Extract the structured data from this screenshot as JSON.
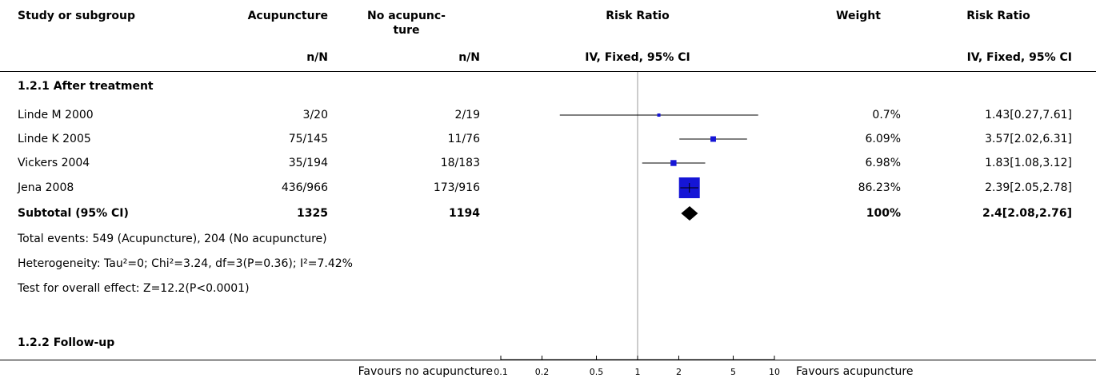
{
  "header": {
    "study_col": "Study or subgroup",
    "acu_col": "Acupuncture",
    "noacu_col_line1": "No acupunc-",
    "noacu_col_line2": "ture",
    "rr_col": "Risk Ratio",
    "weight_col": "Weight",
    "rr2_col": "Risk Ratio",
    "acu_sub": "n/N",
    "noacu_sub": "n/N",
    "rr_sub": "IV, Fixed, 95% CI",
    "rr2_sub": "IV, Fixed, 95% CI"
  },
  "groups": [
    {
      "title": "1.2.1 After treatment",
      "studies": [
        {
          "name": "Linde M 2000",
          "acu": "3/20",
          "noacu": "2/19",
          "weight": "0.7%",
          "ci_text": "1.43[0.27,7.61]"
        },
        {
          "name": "Linde K 2005",
          "acu": "75/145",
          "noacu": "11/76",
          "weight": "6.09%",
          "ci_text": "3.57[2.02,6.31]"
        },
        {
          "name": "Vickers 2004",
          "acu": "35/194",
          "noacu": "18/183",
          "weight": "6.98%",
          "ci_text": "1.83[1.08,3.12]"
        },
        {
          "name": "Jena 2008",
          "acu": "436/966",
          "noacu": "173/916",
          "weight": "86.23%",
          "ci_text": "2.39[2.05,2.78]"
        }
      ],
      "subtotal": {
        "label": "Subtotal (95% CI)",
        "acu": "1325",
        "noacu": "1194",
        "weight": "100%",
        "ci_text": "2.4[2.08,2.76]"
      },
      "notes": [
        "Total events: 549 (Acupuncture), 204 (No acupuncture)",
        "Heterogeneity: Tau²=0; Chi²=3.24, df=3(P=0.36); I²=7.42%",
        "Test for overall effect: Z=12.2(P<0.0001)"
      ]
    },
    {
      "title": "1.2.2 Follow-up"
    }
  ],
  "footer": {
    "favours_left": "Favours no acupuncture",
    "favours_right": "Favours acupuncture"
  },
  "chart_data": {
    "type": "forest",
    "scale": "log",
    "xlim": [
      0.1,
      10
    ],
    "ticks": [
      "0.1",
      "0.2",
      "0.5",
      "1",
      "2",
      "5",
      "10"
    ],
    "tick_values": [
      0.1,
      0.2,
      0.5,
      1,
      2,
      5,
      10
    ],
    "null_value": 1,
    "studies": [
      {
        "name": "Linde M 2000",
        "rr": 1.43,
        "lo": 0.27,
        "hi": 7.61,
        "weight": 0.7
      },
      {
        "name": "Linde K 2005",
        "rr": 3.57,
        "lo": 2.02,
        "hi": 6.31,
        "weight": 6.09
      },
      {
        "name": "Vickers 2004",
        "rr": 1.83,
        "lo": 1.08,
        "hi": 3.12,
        "weight": 6.98
      },
      {
        "name": "Jena 2008",
        "rr": 2.39,
        "lo": 2.05,
        "hi": 2.78,
        "weight": 86.23
      }
    ],
    "subtotal": {
      "name": "Subtotal (95% CI)",
      "rr": 2.4,
      "lo": 2.08,
      "hi": 2.76
    },
    "colors": {
      "marker": "#1515d6",
      "line": "#000000",
      "diamond": "#000000",
      "null_line": "#9a9a9a"
    }
  }
}
